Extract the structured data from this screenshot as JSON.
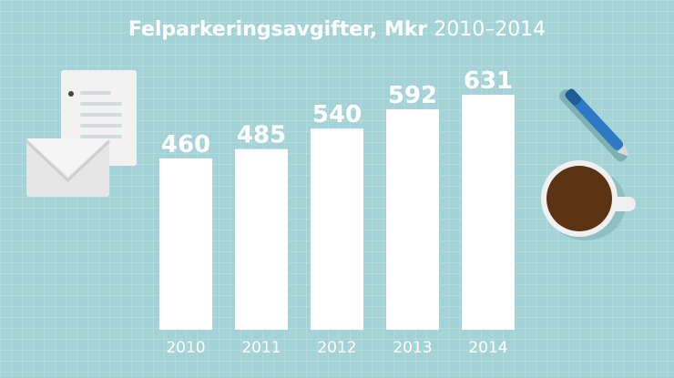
{
  "title": {
    "bold_part": "Felparkeringsavgifter, Mkr",
    "light_part": "2010–2014"
  },
  "icons": [
    "document-icon",
    "envelope-icon",
    "pen-icon",
    "coffee-cup-icon"
  ],
  "colors": {
    "background": "#a3d3d6",
    "bars": "#ffffff",
    "text": "#ffffff",
    "coffee": "#5a3414",
    "pen": "#2e79c4"
  },
  "chart_data": {
    "type": "bar",
    "title": "Felparkeringsavgifter, Mkr 2010–2014",
    "categories": [
      "2010",
      "2011",
      "2012",
      "2013",
      "2014"
    ],
    "values": [
      460,
      485,
      540,
      592,
      631
    ],
    "xlabel": "",
    "ylabel": "",
    "ylim": [
      0,
      631
    ],
    "grid": false,
    "legend": "none"
  }
}
